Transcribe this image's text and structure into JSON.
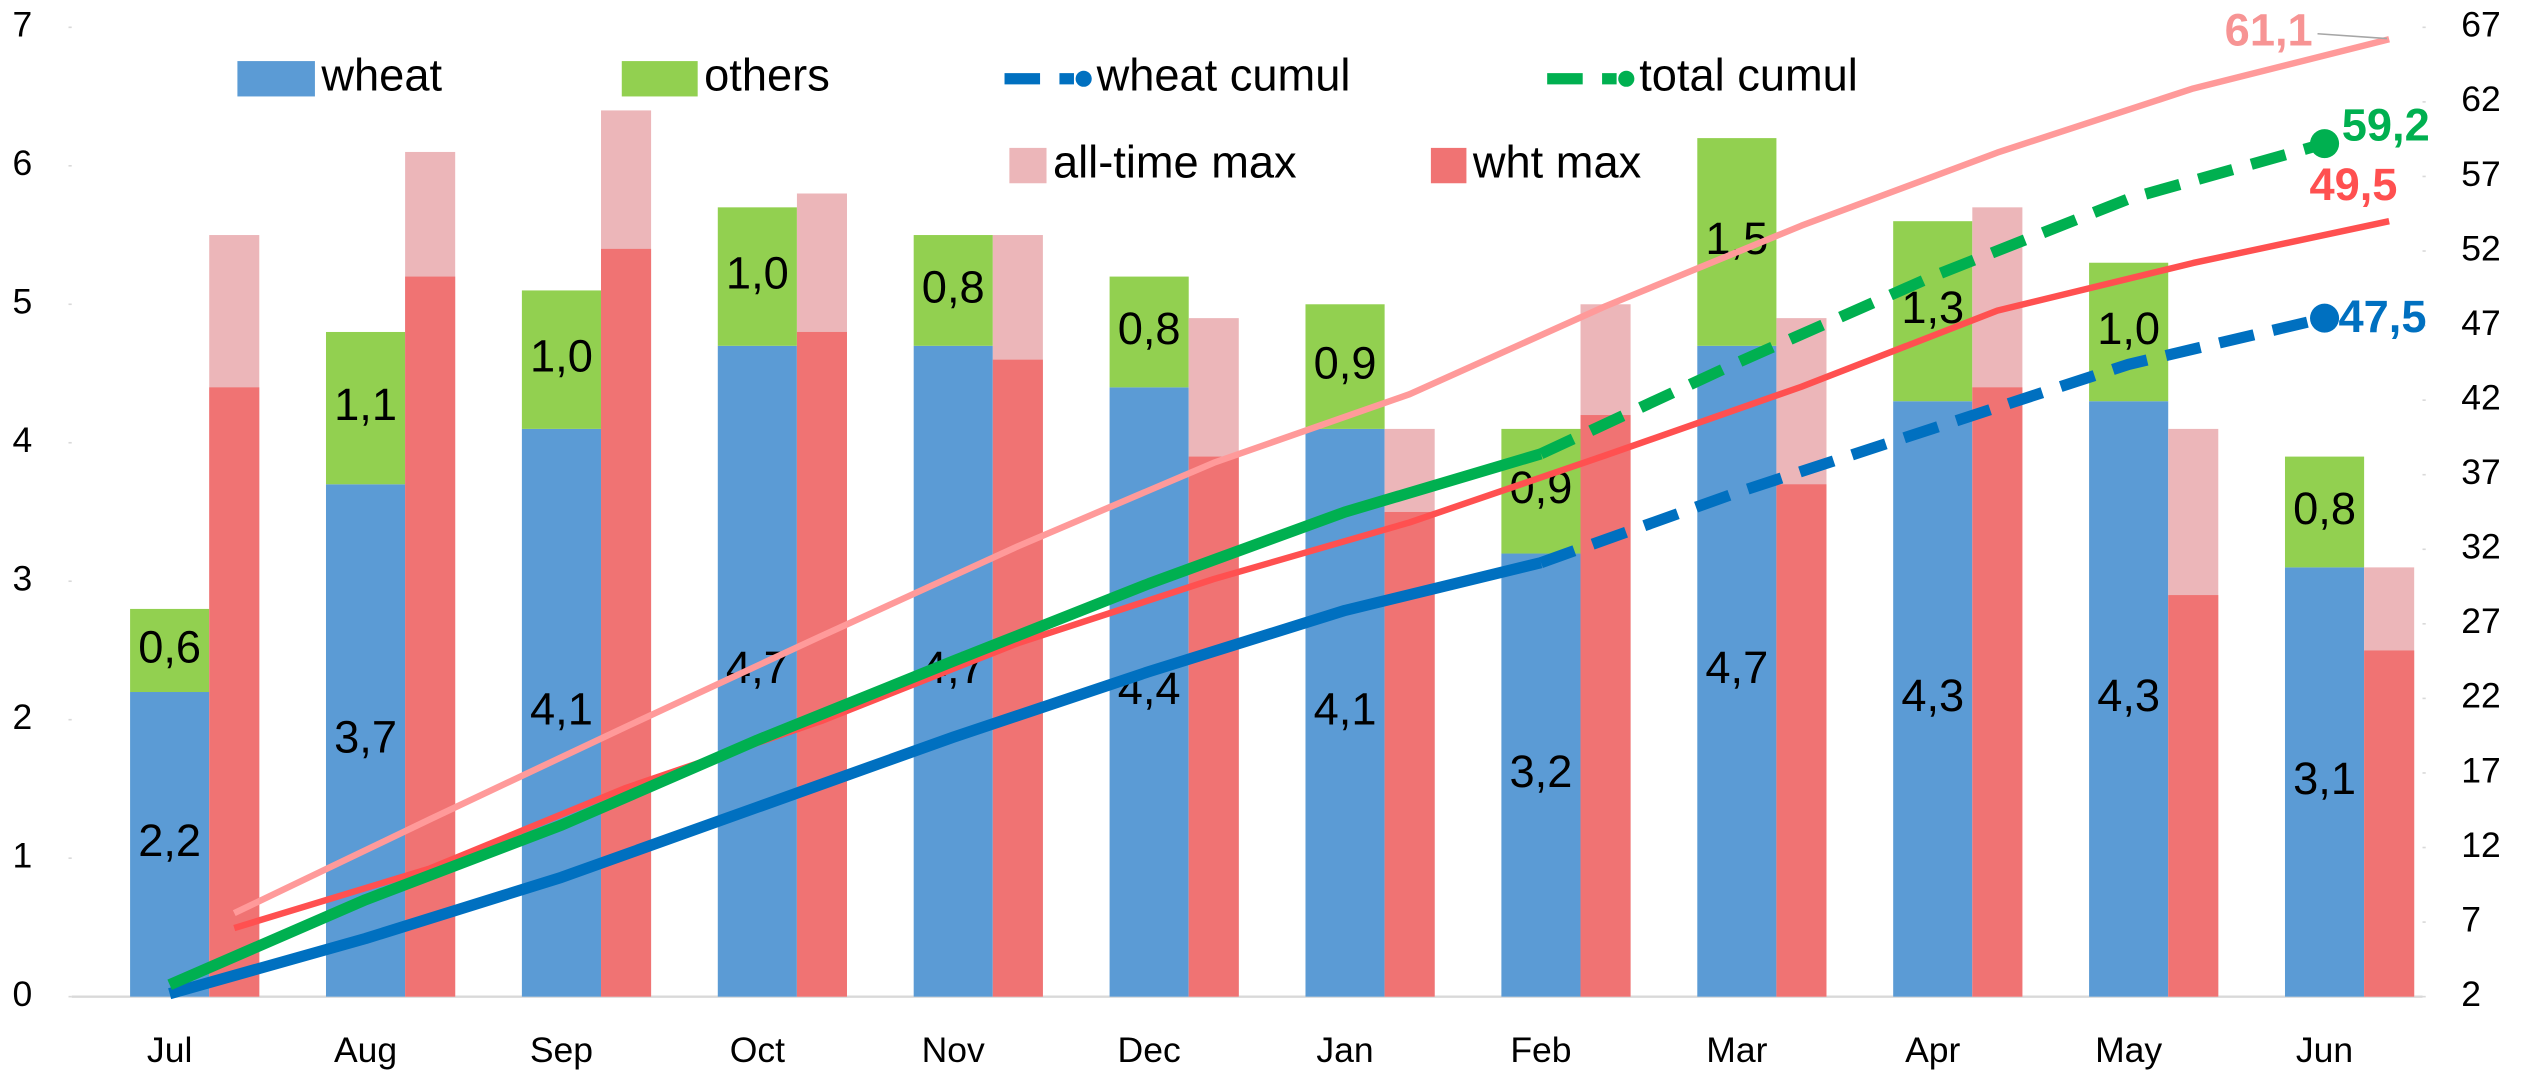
{
  "chart_data": {
    "type": "bar",
    "categories": [
      "Jul",
      "Aug",
      "Sep",
      "Oct",
      "Nov",
      "Dec",
      "Jan",
      "Feb",
      "Mar",
      "Apr",
      "May",
      "Jun"
    ],
    "ylim": [
      0,
      7
    ],
    "yticks": [
      0,
      1,
      2,
      3,
      4,
      5,
      6,
      7
    ],
    "y2lim": [
      2,
      67
    ],
    "y2ticks": [
      2,
      7,
      12,
      17,
      22,
      27,
      32,
      37,
      42,
      47,
      52,
      57,
      62,
      67
    ],
    "legend": "top",
    "series": [
      {
        "name": "wheat",
        "type": "bar",
        "group": 0,
        "color": "#5b9bd5",
        "values": [
          2.2,
          3.7,
          4.1,
          4.7,
          4.7,
          4.4,
          4.1,
          3.2,
          4.7,
          4.3,
          4.3,
          3.1
        ],
        "value_labels": [
          "2,2",
          "3,7",
          "4,1",
          "4,7",
          "4,7",
          "4,4",
          "4,1",
          "3,2",
          "4,7",
          "4,3",
          "4,3",
          "3,1"
        ]
      },
      {
        "name": "others",
        "type": "bar",
        "group": 0,
        "stacked": true,
        "color": "#92d050",
        "values": [
          0.6,
          1.1,
          1.0,
          1.0,
          0.8,
          0.8,
          0.9,
          0.9,
          1.5,
          1.3,
          1.0,
          0.8
        ],
        "value_labels": [
          "0,6",
          "1,1",
          "1,0",
          "1,0",
          "0,8",
          "0,8",
          "0,9",
          "0,9",
          "1,5",
          "1,3",
          "1,0",
          "0,8"
        ]
      },
      {
        "name": "all-time max",
        "type": "bar",
        "group": 1,
        "color": "#ecb6b9",
        "values": [
          5.5,
          6.1,
          6.4,
          5.8,
          5.5,
          4.9,
          4.1,
          5.0,
          4.9,
          5.7,
          4.1,
          3.1
        ]
      },
      {
        "name": "wht max",
        "type": "bar",
        "group": 1,
        "color": "#f07373",
        "values": [
          4.4,
          5.2,
          5.4,
          4.8,
          4.6,
          3.9,
          3.5,
          4.2,
          3.7,
          4.4,
          2.9,
          2.5
        ]
      },
      {
        "type": "line",
        "axis": "y2",
        "group": 1,
        "color": "#ff9a9a",
        "values": [
          7.6,
          13.9,
          20.1,
          26.2,
          32.2,
          37.8,
          42.4,
          48.3,
          53.7,
          58.6,
          62.9,
          66.2
        ]
      },
      {
        "type": "line",
        "axis": "y2",
        "group": 1,
        "color": "#ff5050",
        "values": [
          6.6,
          10.6,
          16.0,
          20.5,
          25.7,
          30.0,
          33.8,
          38.3,
          42.9,
          48.0,
          51.2,
          54.0
        ]
      },
      {
        "name": "wheat cumul",
        "type": "line",
        "axis": "y2",
        "group": 0,
        "color": "#0070c0",
        "dash_from": 7,
        "end_marker": true,
        "values": [
          2.2,
          5.9,
          10.0,
          14.7,
          19.4,
          23.8,
          27.9,
          31.1,
          35.8,
          40.1,
          44.4,
          47.5
        ]
      },
      {
        "name": "total cumul",
        "type": "line",
        "axis": "y2",
        "group": 0,
        "color": "#00b050",
        "dash_from": 7,
        "end_marker": true,
        "values": [
          2.8,
          8.5,
          13.5,
          19.2,
          24.5,
          29.7,
          34.5,
          38.4,
          44.5,
          50.3,
          55.5,
          59.2
        ]
      }
    ],
    "annotations": [
      {
        "text": "61,1",
        "color": "#f79494"
      },
      {
        "text": "59,2",
        "color": "#00b050"
      },
      {
        "text": "49,5",
        "color": "#ff5050"
      },
      {
        "text": "47,5",
        "color": "#0070c0"
      }
    ]
  }
}
